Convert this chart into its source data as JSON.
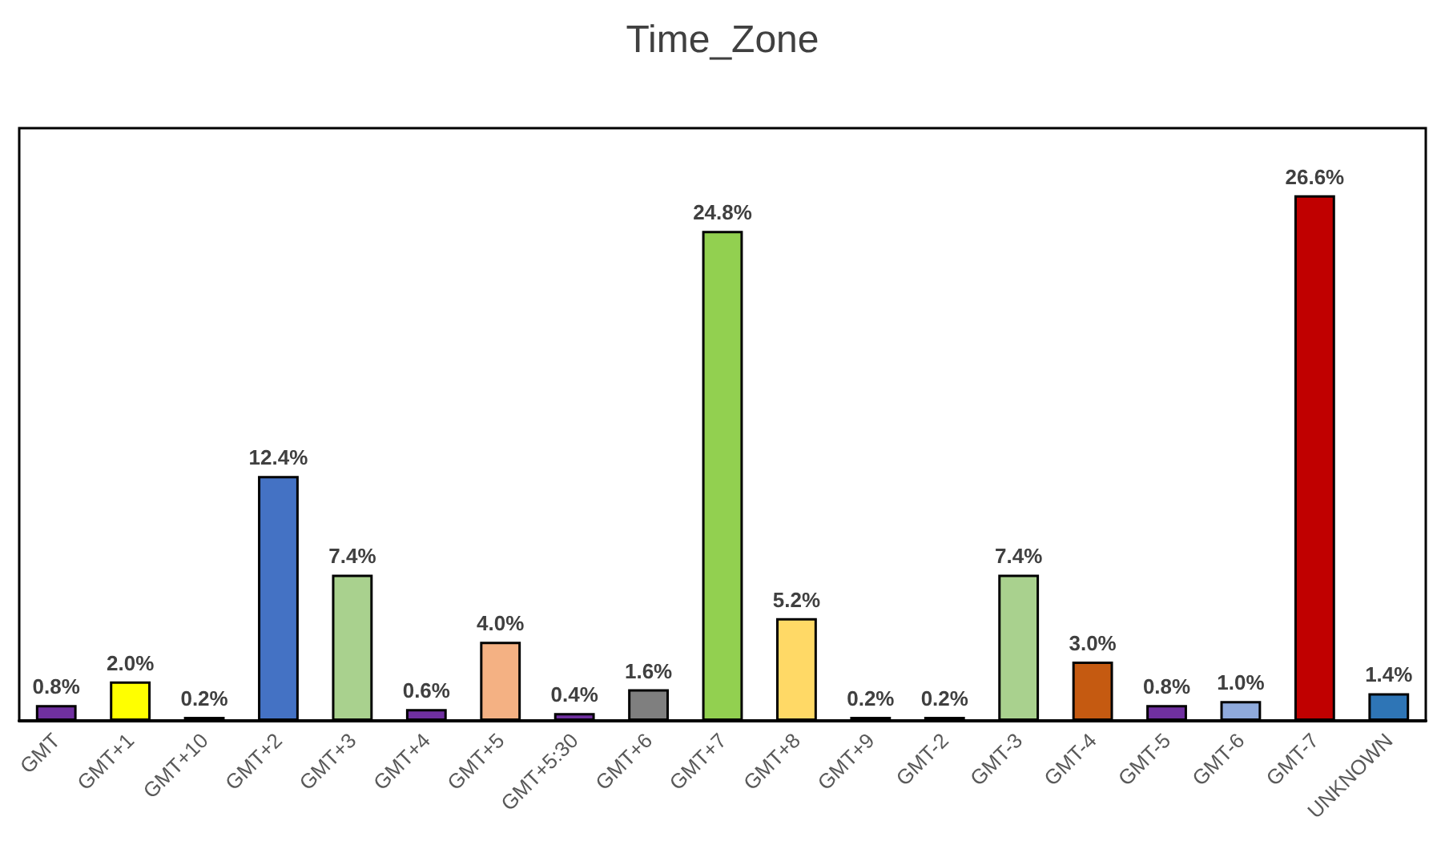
{
  "chart_data": {
    "type": "bar",
    "title": "Time_Zone",
    "categories": [
      "GMT",
      "GMT+1",
      "GMT+10",
      "GMT+2",
      "GMT+3",
      "GMT+4",
      "GMT+5",
      "GMT+5:30",
      "GMT+6",
      "GMT+7",
      "GMT+8",
      "GMT+9",
      "GMT-2",
      "GMT-3",
      "GMT-4",
      "GMT-5",
      "GMT-6",
      "GMT-7",
      "UNKNOWN"
    ],
    "values": [
      0.8,
      2.0,
      0.2,
      12.4,
      7.4,
      0.6,
      4.0,
      0.4,
      1.6,
      24.8,
      5.2,
      0.2,
      0.2,
      7.4,
      3.0,
      0.8,
      1.0,
      26.6,
      1.4
    ],
    "value_labels": [
      "0.8%",
      "2.0%",
      "0.2%",
      "12.4%",
      "7.4%",
      "0.6%",
      "4.0%",
      "0.4%",
      "1.6%",
      "24.8%",
      "5.2%",
      "0.2%",
      "0.2%",
      "7.4%",
      "3.0%",
      "0.8%",
      "1.0%",
      "26.6%",
      "1.4%"
    ],
    "colors": [
      "#7030a0",
      "#ffff00",
      "#7030a0",
      "#4472c4",
      "#a9d18e",
      "#7030a0",
      "#f4b183",
      "#7030a0",
      "#7f7f7f",
      "#92d050",
      "#ffd966",
      "#7030a0",
      "#7030a0",
      "#a9d18e",
      "#c55a11",
      "#7030a0",
      "#8faadc",
      "#c00000",
      "#2e75b6"
    ]
  }
}
